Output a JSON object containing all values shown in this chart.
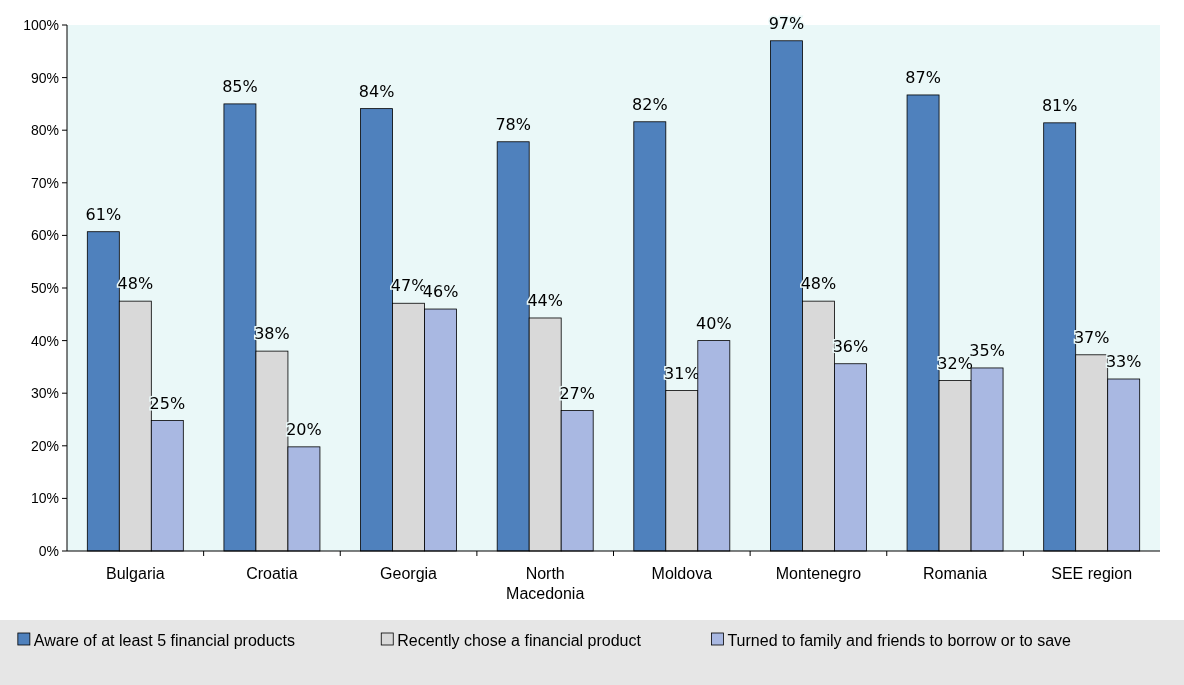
{
  "chart_data": {
    "type": "bar",
    "categories": [
      "Bulgaria",
      "Croatia",
      "Georgia",
      "North Macedonia",
      "Moldova",
      "Montenegro",
      "Romania",
      "SEE region"
    ],
    "series": [
      {
        "name": "Aware of at least 5 financial products",
        "color": "#4f81bd",
        "values": [
          60.7,
          85,
          84.1,
          77.8,
          81.6,
          97,
          86.7,
          81.4
        ],
        "value_labels": [
          "61%",
          "85%",
          "84%",
          "78%",
          "82%",
          "97%",
          "87%",
          "81%"
        ]
      },
      {
        "name": "Recently chose a financial product",
        "color": "#d9d9d9",
        "values": [
          47.5,
          38,
          47.1,
          44.3,
          30.5,
          47.5,
          32.4,
          37.3
        ],
        "value_labels": [
          "48%",
          "38%",
          "47%",
          "44%",
          "31%",
          "48%",
          "32%",
          "37%"
        ]
      },
      {
        "name": "Turned to family and friends to borrow or to save",
        "color": "#a9b8e2",
        "values": [
          24.8,
          19.8,
          46,
          26.7,
          40,
          35.6,
          34.8,
          32.7
        ],
        "value_labels": [
          "25%",
          "20%",
          "46%",
          "27%",
          "40%",
          "36%",
          "35%",
          "33%"
        ]
      }
    ],
    "ylim": [
      0,
      100
    ],
    "yticks": [
      {
        "value": 0,
        "label": "0%"
      },
      {
        "value": 10,
        "label": "10%"
      },
      {
        "value": 20,
        "label": "20%"
      },
      {
        "value": 30,
        "label": "30%"
      },
      {
        "value": 40,
        "label": "40%"
      },
      {
        "value": 50,
        "label": "50%"
      },
      {
        "value": 60,
        "label": "60%"
      },
      {
        "value": 70,
        "label": "70%"
      },
      {
        "value": 80,
        "label": "80%"
      },
      {
        "value": 90,
        "label": "90%"
      },
      {
        "value": 100,
        "label": "100%"
      }
    ],
    "grid": false,
    "legend": "bottom"
  }
}
